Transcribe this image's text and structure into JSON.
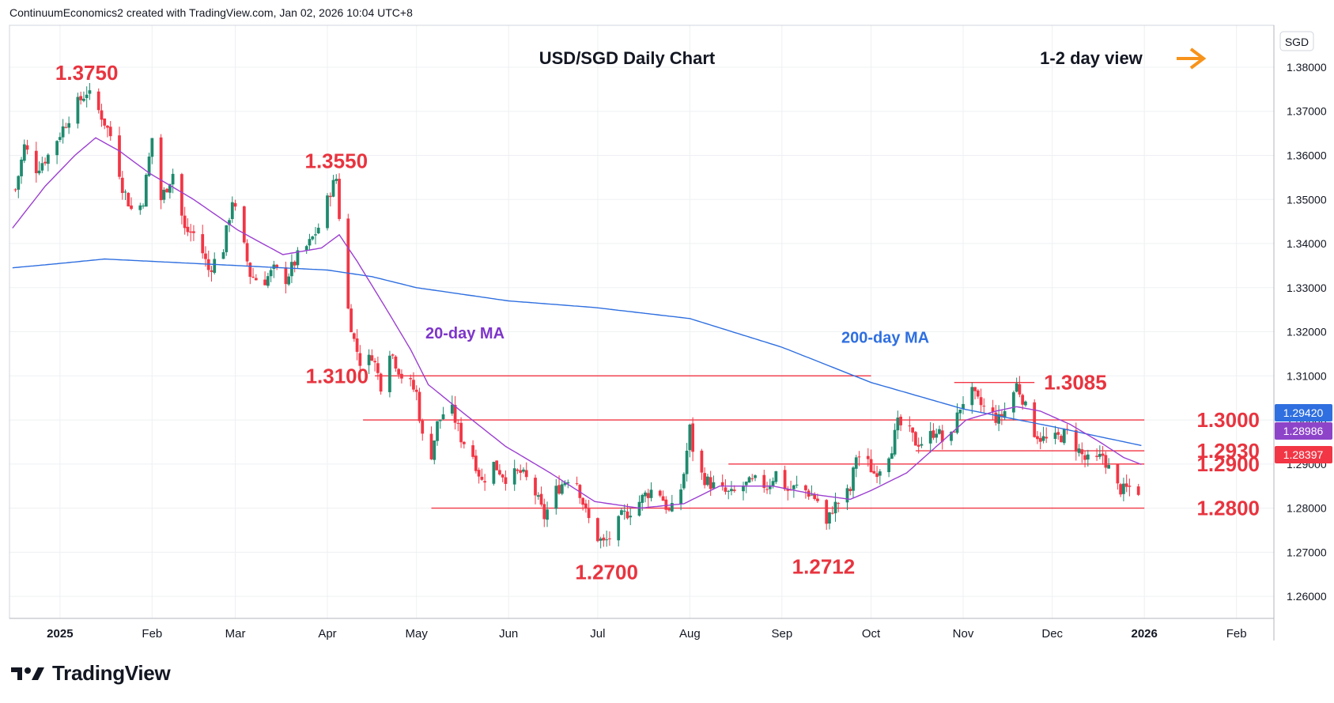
{
  "header": {
    "text": "ContinuumEconomics2 created with TradingView.com, Jan 02, 2026 10:04 UTC+8"
  },
  "brand": {
    "text": "TradingView"
  },
  "chart_data": {
    "type": "candlestick",
    "title": "USD/SGD Daily Chart",
    "view_label": "1-2 day view",
    "view_icon": "arrow-right-icon",
    "currency": "SGD",
    "ylim": [
      1.255,
      1.3895
    ],
    "y_ticks": [
      "1.38000",
      "1.37000",
      "1.36000",
      "1.35000",
      "1.34000",
      "1.33000",
      "1.32000",
      "1.31000",
      "1.30000",
      "1.29000",
      "1.28000",
      "1.27000",
      "1.26000"
    ],
    "x_ticks": [
      {
        "label": "2025",
        "x": 0
      },
      {
        "label": "Feb",
        "x": 31
      },
      {
        "label": "Mar",
        "x": 59
      },
      {
        "label": "Apr",
        "x": 90
      },
      {
        "label": "May",
        "x": 120
      },
      {
        "label": "Jun",
        "x": 151
      },
      {
        "label": "Jul",
        "x": 181
      },
      {
        "label": "Aug",
        "x": 212
      },
      {
        "label": "Sep",
        "x": 243
      },
      {
        "label": "Oct",
        "x": 273
      },
      {
        "label": "Nov",
        "x": 304
      },
      {
        "label": "Dec",
        "x": 334
      },
      {
        "label": "2026",
        "x": 365
      },
      {
        "label": "Feb",
        "x": 396
      }
    ],
    "price_anchors": [
      {
        "x": -16,
        "v": 1.349
      },
      {
        "x": -12,
        "v": 1.362
      },
      {
        "x": -8,
        "v": 1.357
      },
      {
        "x": -4,
        "v": 1.36
      },
      {
        "x": 0,
        "v": 1.365
      },
      {
        "x": 4,
        "v": 1.37
      },
      {
        "x": 9,
        "v": 1.3745
      },
      {
        "x": 14,
        "v": 1.369
      },
      {
        "x": 18,
        "v": 1.363
      },
      {
        "x": 21,
        "v": 1.353
      },
      {
        "x": 25,
        "v": 1.346
      },
      {
        "x": 28,
        "v": 1.35
      },
      {
        "x": 31,
        "v": 1.364
      },
      {
        "x": 34,
        "v": 1.35
      },
      {
        "x": 38,
        "v": 1.356
      },
      {
        "x": 42,
        "v": 1.343
      },
      {
        "x": 46,
        "v": 1.342
      },
      {
        "x": 50,
        "v": 1.334
      },
      {
        "x": 55,
        "v": 1.339
      },
      {
        "x": 58,
        "v": 1.35
      },
      {
        "x": 61,
        "v": 1.342
      },
      {
        "x": 64,
        "v": 1.333
      },
      {
        "x": 68,
        "v": 1.331
      },
      {
        "x": 72,
        "v": 1.334
      },
      {
        "x": 76,
        "v": 1.332
      },
      {
        "x": 80,
        "v": 1.337
      },
      {
        "x": 84,
        "v": 1.34
      },
      {
        "x": 88,
        "v": 1.345
      },
      {
        "x": 91,
        "v": 1.352
      },
      {
        "x": 93,
        "v": 1.3548
      },
      {
        "x": 95,
        "v": 1.338
      },
      {
        "x": 97,
        "v": 1.325
      },
      {
        "x": 99,
        "v": 1.318
      },
      {
        "x": 102,
        "v": 1.311
      },
      {
        "x": 105,
        "v": 1.315
      },
      {
        "x": 108,
        "v": 1.308
      },
      {
        "x": 111,
        "v": 1.316
      },
      {
        "x": 115,
        "v": 1.31
      },
      {
        "x": 118,
        "v": 1.308
      },
      {
        "x": 120,
        "v": 1.306
      },
      {
        "x": 122,
        "v": 1.296
      },
      {
        "x": 124,
        "v": 1.289
      },
      {
        "x": 127,
        "v": 1.299
      },
      {
        "x": 131,
        "v": 1.304
      },
      {
        "x": 135,
        "v": 1.296
      },
      {
        "x": 139,
        "v": 1.292
      },
      {
        "x": 142,
        "v": 1.286
      },
      {
        "x": 146,
        "v": 1.29
      },
      {
        "x": 150,
        "v": 1.287
      },
      {
        "x": 155,
        "v": 1.288
      },
      {
        "x": 159,
        "v": 1.285
      },
      {
        "x": 163,
        "v": 1.278
      },
      {
        "x": 167,
        "v": 1.284
      },
      {
        "x": 171,
        "v": 1.287
      },
      {
        "x": 174,
        "v": 1.286
      },
      {
        "x": 177,
        "v": 1.279
      },
      {
        "x": 180,
        "v": 1.274
      },
      {
        "x": 183,
        "v": 1.272
      },
      {
        "x": 186,
        "v": 1.274
      },
      {
        "x": 189,
        "v": 1.278
      },
      {
        "x": 193,
        "v": 1.28
      },
      {
        "x": 197,
        "v": 1.283
      },
      {
        "x": 201,
        "v": 1.285
      },
      {
        "x": 205,
        "v": 1.279
      },
      {
        "x": 208,
        "v": 1.281
      },
      {
        "x": 210,
        "v": 1.288
      },
      {
        "x": 212,
        "v": 1.298
      },
      {
        "x": 214,
        "v": 1.289
      },
      {
        "x": 218,
        "v": 1.286
      },
      {
        "x": 222,
        "v": 1.284
      },
      {
        "x": 226,
        "v": 1.283
      },
      {
        "x": 230,
        "v": 1.285
      },
      {
        "x": 234,
        "v": 1.286
      },
      {
        "x": 238,
        "v": 1.285
      },
      {
        "x": 241,
        "v": 1.288
      },
      {
        "x": 245,
        "v": 1.284
      },
      {
        "x": 249,
        "v": 1.285
      },
      {
        "x": 253,
        "v": 1.283
      },
      {
        "x": 256,
        "v": 1.281
      },
      {
        "x": 258,
        "v": 1.276
      },
      {
        "x": 260,
        "v": 1.28
      },
      {
        "x": 263,
        "v": 1.282
      },
      {
        "x": 266,
        "v": 1.284
      },
      {
        "x": 268,
        "v": 1.292
      },
      {
        "x": 271,
        "v": 1.291
      },
      {
        "x": 274,
        "v": 1.288
      },
      {
        "x": 277,
        "v": 1.29
      },
      {
        "x": 280,
        "v": 1.294
      },
      {
        "x": 282,
        "v": 1.299
      },
      {
        "x": 285,
        "v": 1.298
      },
      {
        "x": 288,
        "v": 1.295
      },
      {
        "x": 291,
        "v": 1.295
      },
      {
        "x": 295,
        "v": 1.298
      },
      {
        "x": 298,
        "v": 1.294
      },
      {
        "x": 300,
        "v": 1.296
      },
      {
        "x": 303,
        "v": 1.303
      },
      {
        "x": 306,
        "v": 1.307
      },
      {
        "x": 309,
        "v": 1.304
      },
      {
        "x": 312,
        "v": 1.302
      },
      {
        "x": 316,
        "v": 1.3
      },
      {
        "x": 319,
        "v": 1.303
      },
      {
        "x": 322,
        "v": 1.308
      },
      {
        "x": 324,
        "v": 1.305
      },
      {
        "x": 327,
        "v": 1.298
      },
      {
        "x": 330,
        "v": 1.296
      },
      {
        "x": 333,
        "v": 1.295
      },
      {
        "x": 336,
        "v": 1.296
      },
      {
        "x": 339,
        "v": 1.297
      },
      {
        "x": 342,
        "v": 1.294
      },
      {
        "x": 345,
        "v": 1.291
      },
      {
        "x": 348,
        "v": 1.29
      },
      {
        "x": 351,
        "v": 1.292
      },
      {
        "x": 353,
        "v": 1.289
      },
      {
        "x": 355,
        "v": 1.285
      },
      {
        "x": 358,
        "v": 1.284
      },
      {
        "x": 361,
        "v": 1.285
      },
      {
        "x": 363,
        "v": 1.284
      }
    ],
    "ma200_anchors": [
      {
        "x": -16,
        "v": 1.3345
      },
      {
        "x": 0,
        "v": 1.3355
      },
      {
        "x": 15,
        "v": 1.3365
      },
      {
        "x": 30,
        "v": 1.336
      },
      {
        "x": 60,
        "v": 1.335
      },
      {
        "x": 90,
        "v": 1.334
      },
      {
        "x": 105,
        "v": 1.3325
      },
      {
        "x": 120,
        "v": 1.33
      },
      {
        "x": 151,
        "v": 1.327
      },
      {
        "x": 180,
        "v": 1.3255
      },
      {
        "x": 212,
        "v": 1.323
      },
      {
        "x": 243,
        "v": 1.3165
      },
      {
        "x": 273,
        "v": 1.3085
      },
      {
        "x": 304,
        "v": 1.3025
      },
      {
        "x": 334,
        "v": 1.2985
      },
      {
        "x": 350,
        "v": 1.2962
      },
      {
        "x": 364,
        "v": 1.2942
      }
    ],
    "ma20_anchors": [
      {
        "x": -16,
        "v": 1.3435
      },
      {
        "x": -5,
        "v": 1.353
      },
      {
        "x": 5,
        "v": 1.36
      },
      {
        "x": 12,
        "v": 1.364
      },
      {
        "x": 20,
        "v": 1.361
      },
      {
        "x": 30,
        "v": 1.356
      },
      {
        "x": 45,
        "v": 1.35
      },
      {
        "x": 60,
        "v": 1.343
      },
      {
        "x": 75,
        "v": 1.3375
      },
      {
        "x": 88,
        "v": 1.339
      },
      {
        "x": 94,
        "v": 1.342
      },
      {
        "x": 100,
        "v": 1.336
      },
      {
        "x": 110,
        "v": 1.325
      },
      {
        "x": 118,
        "v": 1.316
      },
      {
        "x": 124,
        "v": 1.308
      },
      {
        "x": 135,
        "v": 1.302
      },
      {
        "x": 150,
        "v": 1.294
      },
      {
        "x": 165,
        "v": 1.288
      },
      {
        "x": 180,
        "v": 1.2815
      },
      {
        "x": 195,
        "v": 1.28
      },
      {
        "x": 210,
        "v": 1.281
      },
      {
        "x": 222,
        "v": 1.285
      },
      {
        "x": 240,
        "v": 1.285
      },
      {
        "x": 255,
        "v": 1.283
      },
      {
        "x": 266,
        "v": 1.282
      },
      {
        "x": 273,
        "v": 1.284
      },
      {
        "x": 285,
        "v": 1.288
      },
      {
        "x": 295,
        "v": 1.294
      },
      {
        "x": 305,
        "v": 1.3
      },
      {
        "x": 315,
        "v": 1.302
      },
      {
        "x": 322,
        "v": 1.303
      },
      {
        "x": 330,
        "v": 1.302
      },
      {
        "x": 340,
        "v": 1.299
      },
      {
        "x": 350,
        "v": 1.295
      },
      {
        "x": 358,
        "v": 1.2915
      },
      {
        "x": 364,
        "v": 1.2899
      }
    ],
    "levels": [
      {
        "label": "1.3100",
        "value": 1.31,
        "from": 106,
        "to": 273,
        "text_side": "left"
      },
      {
        "label": "1.3085",
        "value": 1.3085,
        "from": 301,
        "to": 328,
        "text_side": "right"
      },
      {
        "label": "1.3000",
        "value": 1.3,
        "from": 102,
        "to": 365,
        "text_side": "right"
      },
      {
        "label": "1.2930",
        "value": 1.293,
        "from": 288,
        "to": 365,
        "text_side": "right"
      },
      {
        "label": "1.2900",
        "value": 1.29,
        "from": 225,
        "to": 365,
        "text_side": "right"
      },
      {
        "label": "1.2800",
        "value": 1.28,
        "from": 125,
        "to": 365,
        "text_side": "right"
      }
    ],
    "annotations": [
      {
        "text": "1.3750",
        "x": 9,
        "v": 1.375,
        "kind": "above"
      },
      {
        "text": "1.3550",
        "x": 93,
        "v": 1.355,
        "kind": "above"
      },
      {
        "text": "1.2700",
        "x": 184,
        "v": 1.27,
        "kind": "below"
      },
      {
        "text": "1.2712",
        "x": 257,
        "v": 1.2712,
        "kind": "below"
      }
    ],
    "ma_labels": [
      {
        "text": "20-day MA",
        "color": "#7e35c9"
      },
      {
        "text": "200-day MA",
        "color": "#2f6fe0"
      }
    ],
    "price_tags": [
      {
        "label": "1.29420",
        "value": 1.2942,
        "color": "#2f6fe0"
      },
      {
        "label": "1.28986",
        "value": 1.28986,
        "color": "#8e44c9"
      },
      {
        "label": "1.28397",
        "value": 1.28397,
        "color": "#f23645"
      }
    ],
    "colors": {
      "up": "#1e8a6e",
      "down": "#f23645",
      "ma20": "#9c3fd1",
      "ma200": "#2f6fe0",
      "level": "#f23645",
      "label": "#e8343f",
      "arrow": "#f7931a"
    },
    "legend_position": "none",
    "grid": true
  }
}
